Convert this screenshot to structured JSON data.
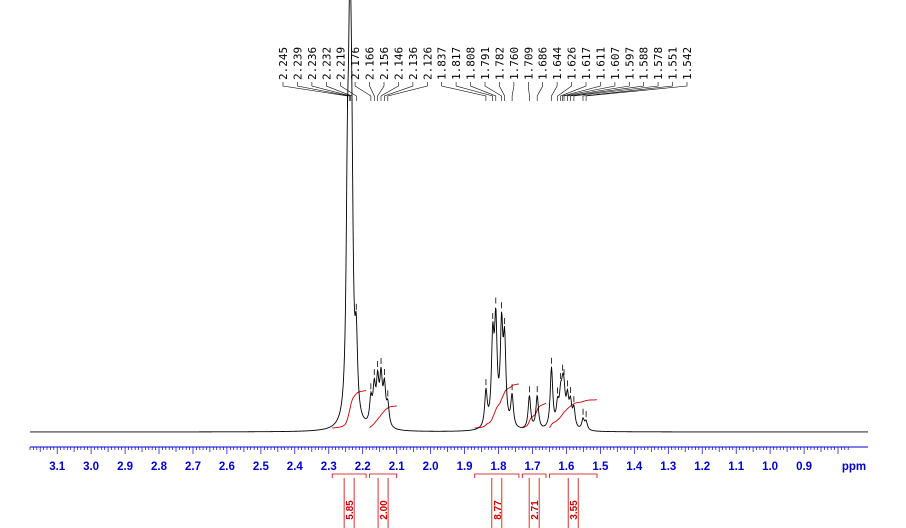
{
  "chart_data": {
    "type": "line",
    "title": "",
    "xlabel": "ppm",
    "ylabel": "",
    "xlim": [
      3.18,
      0.77
    ],
    "x_reversed": true,
    "grid": false,
    "tick_labels": [
      "3.1",
      "3.0",
      "2.9",
      "2.8",
      "2.7",
      "2.6",
      "2.5",
      "2.4",
      "2.3",
      "2.2",
      "2.1",
      "2.0",
      "1.9",
      "1.8",
      "1.7",
      "1.6",
      "1.5",
      "1.4",
      "1.3",
      "1.2",
      "1.1",
      "1.0",
      "0.9"
    ],
    "peak_labels": [
      "2.245",
      "2.239",
      "2.236",
      "2.232",
      "2.219",
      "2.176",
      "2.166",
      "2.156",
      "2.146",
      "2.136",
      "2.126",
      "1.837",
      "1.817",
      "1.808",
      "1.791",
      "1.782",
      "1.760",
      "1.709",
      "1.686",
      "1.644",
      "1.626",
      "1.617",
      "1.611",
      "1.607",
      "1.597",
      "1.588",
      "1.578",
      "1.551",
      "1.542"
    ],
    "peaks": [
      {
        "x": 2.245,
        "h": 0.92
      },
      {
        "x": 2.239,
        "h": 0.96
      },
      {
        "x": 2.236,
        "h": 0.85
      },
      {
        "x": 2.232,
        "h": 0.78
      },
      {
        "x": 2.219,
        "h": 0.35
      },
      {
        "x": 2.176,
        "h": 0.12
      },
      {
        "x": 2.166,
        "h": 0.17
      },
      {
        "x": 2.156,
        "h": 0.2
      },
      {
        "x": 2.146,
        "h": 0.22
      },
      {
        "x": 2.136,
        "h": 0.18
      },
      {
        "x": 2.126,
        "h": 0.1
      },
      {
        "x": 1.837,
        "h": 0.17
      },
      {
        "x": 1.817,
        "h": 0.4
      },
      {
        "x": 1.808,
        "h": 0.47
      },
      {
        "x": 1.791,
        "h": 0.45
      },
      {
        "x": 1.782,
        "h": 0.38
      },
      {
        "x": 1.76,
        "h": 0.15
      },
      {
        "x": 1.709,
        "h": 0.16
      },
      {
        "x": 1.686,
        "h": 0.16
      },
      {
        "x": 1.644,
        "h": 0.29
      },
      {
        "x": 1.626,
        "h": 0.1
      },
      {
        "x": 1.617,
        "h": 0.13
      },
      {
        "x": 1.611,
        "h": 0.13
      },
      {
        "x": 1.607,
        "h": 0.12
      },
      {
        "x": 1.597,
        "h": 0.13
      },
      {
        "x": 1.588,
        "h": 0.11
      },
      {
        "x": 1.578,
        "h": 0.09
      },
      {
        "x": 1.551,
        "h": 0.05
      },
      {
        "x": 1.542,
        "h": 0.04
      }
    ],
    "integrals": [
      {
        "from": 2.29,
        "to": 2.19,
        "value": "5.85"
      },
      {
        "from": 2.18,
        "to": 2.1,
        "value": "2.00"
      },
      {
        "from": 1.87,
        "to": 1.74,
        "value": "8.77"
      },
      {
        "from": 1.73,
        "to": 1.66,
        "value": "2.71"
      },
      {
        "from": 1.65,
        "to": 1.51,
        "value": "3.55"
      }
    ],
    "colors": {
      "spectrum": "#000000",
      "axis": "#0000cc",
      "integral": "#cc0000",
      "labels": "#000000"
    }
  }
}
